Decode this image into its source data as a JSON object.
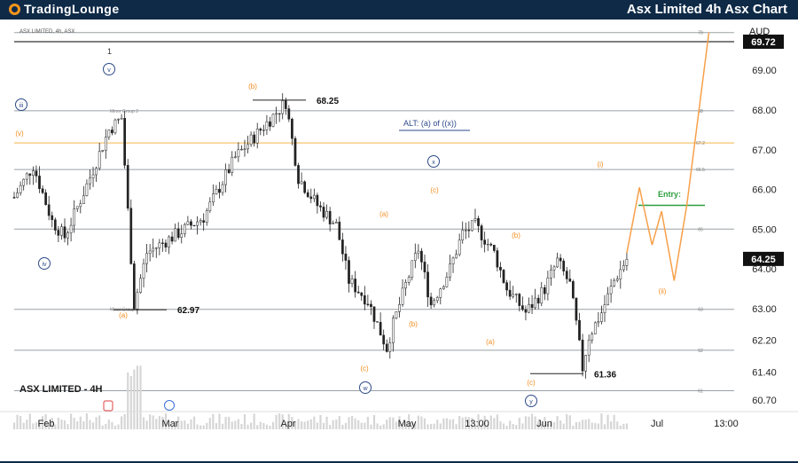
{
  "header": {
    "brand": "TradingLounge",
    "title": "Asx Limited 4h Asx Chart"
  },
  "chart_data": {
    "type": "candlestick",
    "symbol_caption": "ASX LIMITED, 4h, ASX",
    "watermark": "ASX LIMITED - 4H",
    "currency": "AUD",
    "x_ticks": [
      "Feb",
      "Mar",
      "Apr",
      "May",
      "13:00",
      "Jun",
      "Jul",
      "13:00"
    ],
    "y_ticks": [
      69.0,
      68.0,
      67.0,
      66.0,
      65.0,
      64.0,
      63.0,
      62.2,
      61.4,
      60.7
    ],
    "y_tick_labels": [
      "69.00",
      "68.00",
      "67.00",
      "66.00",
      "65.00",
      "64.00",
      "63.00",
      "62.20",
      "61.40",
      "60.70"
    ],
    "ylim": [
      60.45,
      70.1
    ],
    "current_price": "64.25",
    "top_price": "69.72",
    "price_path": [
      [
        0,
        65.8
      ],
      [
        3,
        66.6
      ],
      [
        6,
        65.2
      ],
      [
        8,
        64.8
      ],
      [
        12,
        66.3
      ],
      [
        15,
        67.5
      ],
      [
        17,
        67.8
      ],
      [
        19,
        63.1
      ],
      [
        21,
        64.4
      ],
      [
        23,
        64.6
      ],
      [
        26,
        64.9
      ],
      [
        30,
        65.3
      ],
      [
        35,
        66.8
      ],
      [
        39,
        67.5
      ],
      [
        43,
        68.2
      ],
      [
        45,
        66.3
      ],
      [
        48,
        65.6
      ],
      [
        51,
        65.1
      ],
      [
        53,
        63.7
      ],
      [
        56,
        63.2
      ],
      [
        59,
        62.0
      ],
      [
        60,
        62.6
      ],
      [
        62,
        63.6
      ],
      [
        64,
        64.5
      ],
      [
        66,
        63.1
      ],
      [
        69,
        64.0
      ],
      [
        71,
        64.9
      ],
      [
        73,
        65.1
      ],
      [
        76,
        64.4
      ],
      [
        78,
        63.5
      ],
      [
        81,
        62.9
      ],
      [
        84,
        63.5
      ],
      [
        86,
        64.2
      ],
      [
        88,
        63.6
      ],
      [
        89,
        62.6
      ],
      [
        90,
        61.5
      ],
      [
        91,
        62.3
      ],
      [
        93,
        62.9
      ],
      [
        95,
        63.7
      ],
      [
        97,
        64.25
      ]
    ],
    "horizontal_levels": [
      {
        "value": 69.95,
        "label": "70",
        "color": "#9aa0a6",
        "width": 1
      },
      {
        "value": 69.72,
        "label": "",
        "color": "#555555",
        "width": 1.5
      },
      {
        "value": 67.98,
        "label": "68",
        "color": "#9aa0a6",
        "width": 1
      },
      {
        "value": 67.17,
        "label": "67.2",
        "color": "#f7b54a",
        "width": 1
      },
      {
        "value": 66.5,
        "label": "66.5",
        "color": "#9aa0a6",
        "width": 1
      },
      {
        "value": 65.0,
        "label": "65",
        "color": "#9aa0a6",
        "width": 1
      },
      {
        "value": 62.98,
        "label": "63",
        "color": "#9aa0a6",
        "width": 1
      },
      {
        "value": 61.95,
        "label": "62",
        "color": "#9aa0a6",
        "width": 1
      },
      {
        "value": 60.93,
        "label": "61",
        "color": "#9aa0a6",
        "width": 1
      }
    ],
    "level_notes": [
      {
        "text": "Minor Group 2",
        "value": 67.98
      },
      {
        "text": "Minor Group 1",
        "value": 62.98
      }
    ],
    "price_markers": [
      {
        "text": "68.25",
        "value": 68.25
      },
      {
        "text": "62.97",
        "value": 62.97
      },
      {
        "text": "61.36",
        "value": 61.36
      }
    ],
    "wave_labels_orange": [
      "(v)",
      "(b)",
      "(a)",
      "(c)",
      "(a)",
      "(b)",
      "(c)",
      "(c)",
      "(b)",
      "(a)",
      "(c)",
      "(i)",
      "(ii)"
    ],
    "wave_labels_blue_circled": [
      "iii",
      "v",
      "iv",
      "w",
      "x",
      "y"
    ],
    "wave_label_black": "1",
    "alt_text": "ALT: (a) of ((x))",
    "entry_text": "Entry:",
    "entry_value": 65.6,
    "projection": [
      [
        97,
        64.4
      ],
      [
        99,
        66.05
      ],
      [
        101,
        64.6
      ],
      [
        102.5,
        65.45
      ],
      [
        104.5,
        63.7
      ],
      [
        106.5,
        65.6
      ],
      [
        110,
        69.95
      ]
    ],
    "colors": {
      "header_bg": "#0e2a47",
      "candles": "#222222",
      "wave_orange": "#f28c1e",
      "wave_blue": "#2d4a88",
      "entry_green": "#2e9e3e"
    }
  }
}
